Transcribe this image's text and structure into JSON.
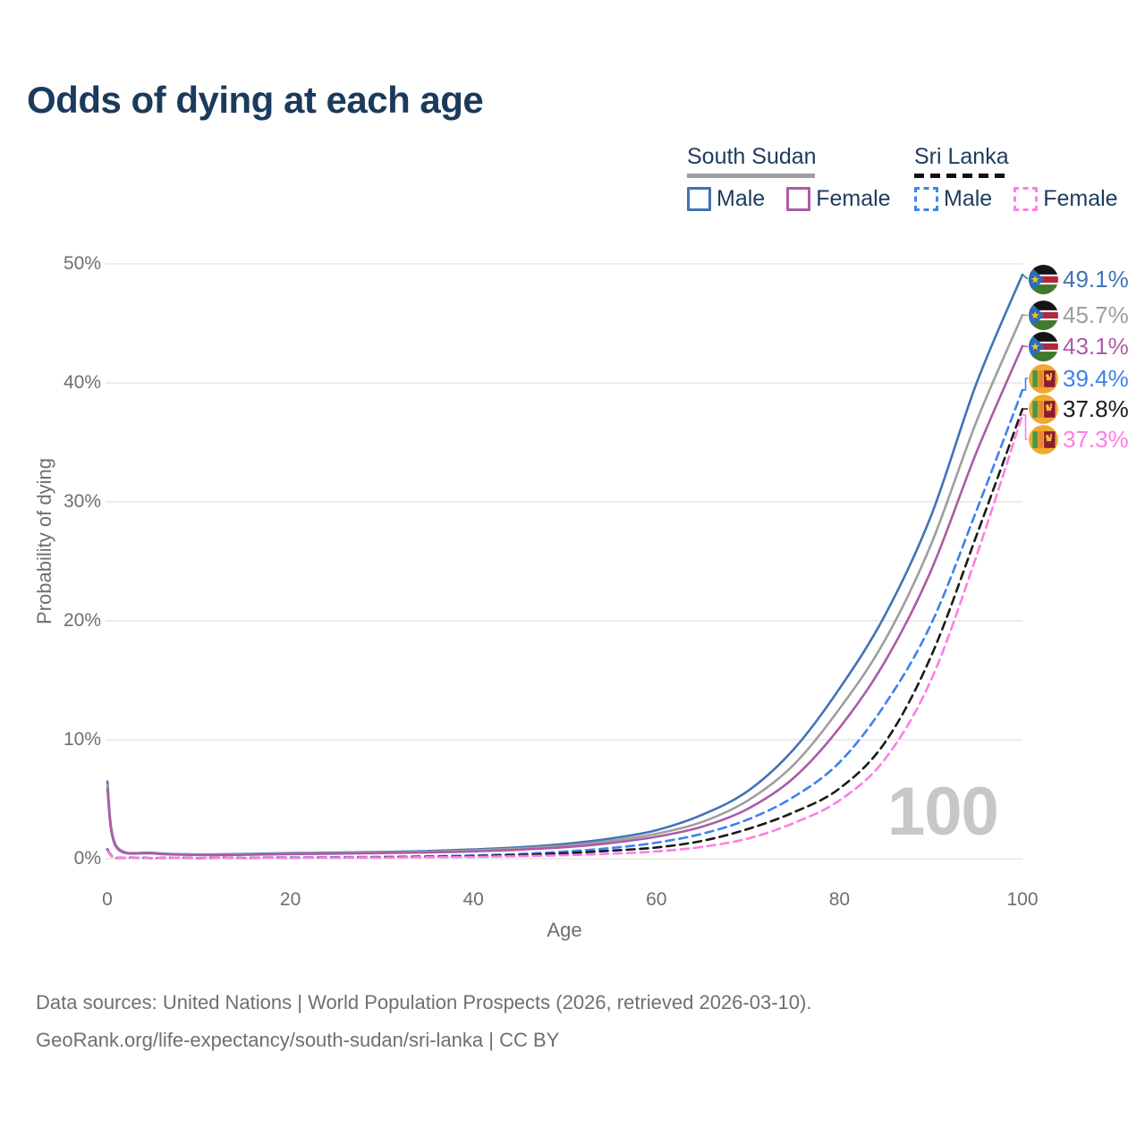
{
  "title": "Odds of dying at each age",
  "legend": {
    "groups": [
      {
        "name": "South Sudan",
        "line_style": "solid",
        "underline_color": "#9e9e9e",
        "underline_width": 143,
        "items": [
          {
            "label": "Male",
            "color": "#4173b4",
            "dashed": false
          },
          {
            "label": "Female",
            "color": "#ac5ba6",
            "dashed": false
          }
        ]
      },
      {
        "name": "Sri Lanka",
        "line_style": "dashed",
        "underline_color": "#111111",
        "underline_width": 104,
        "items": [
          {
            "label": "Male",
            "color": "#3b82f0",
            "dashed": true
          },
          {
            "label": "Female",
            "color": "#ff7de6",
            "dashed": true
          }
        ]
      }
    ]
  },
  "chart_data": {
    "type": "line",
    "title": "Odds of dying at each age",
    "xlabel": "Age",
    "ylabel": "Probability of dying",
    "xlim": [
      0,
      100
    ],
    "ylim": [
      0,
      50
    ],
    "grid": "horizontal",
    "legend_position": "top-right",
    "xticks": [
      {
        "v": 0,
        "label": "0"
      },
      {
        "v": 20,
        "label": "20"
      },
      {
        "v": 40,
        "label": "40"
      },
      {
        "v": 60,
        "label": "60"
      },
      {
        "v": 80,
        "label": "80"
      },
      {
        "v": 100,
        "label": "100"
      }
    ],
    "yticks": [
      {
        "v": 0,
        "label": "0%"
      },
      {
        "v": 10,
        "label": "10%"
      },
      {
        "v": 20,
        "label": "20%"
      },
      {
        "v": 30,
        "label": "30%"
      },
      {
        "v": 40,
        "label": "40%"
      },
      {
        "v": 50,
        "label": "50%"
      }
    ],
    "x": [
      0,
      1,
      5,
      10,
      15,
      20,
      25,
      30,
      35,
      40,
      45,
      50,
      55,
      60,
      65,
      70,
      75,
      80,
      85,
      90,
      95,
      100
    ],
    "series": [
      {
        "name": "South Sudan Male",
        "country": "South Sudan",
        "sex": "Male",
        "color": "#4173b4",
        "dashed": false,
        "flag": "south-sudan",
        "end_label": "49.1%",
        "values": [
          6.5,
          1.05,
          0.5,
          0.36,
          0.4,
          0.47,
          0.52,
          0.57,
          0.65,
          0.78,
          0.96,
          1.25,
          1.7,
          2.4,
          3.7,
          5.7,
          9.2,
          14.3,
          20.5,
          28.8,
          40.0,
          49.1
        ]
      },
      {
        "name": "South Sudan Both sexes",
        "country": "South Sudan",
        "sex": "Both sexes",
        "color": "#9e9e9e",
        "dashed": false,
        "flag": "south-sudan",
        "end_label": "45.7%",
        "values": [
          6.2,
          1.0,
          0.47,
          0.33,
          0.36,
          0.43,
          0.47,
          0.52,
          0.59,
          0.7,
          0.86,
          1.1,
          1.5,
          2.1,
          3.1,
          4.9,
          7.9,
          12.6,
          18.4,
          26.4,
          36.8,
          45.7
        ]
      },
      {
        "name": "South Sudan Female",
        "country": "South Sudan",
        "sex": "Female",
        "color": "#ac5ba6",
        "dashed": false,
        "flag": "south-sudan",
        "end_label": "43.1%",
        "values": [
          5.9,
          0.95,
          0.44,
          0.31,
          0.33,
          0.39,
          0.43,
          0.47,
          0.53,
          0.62,
          0.76,
          0.97,
          1.32,
          1.85,
          2.7,
          4.2,
          6.8,
          11.0,
          16.6,
          24.2,
          34.2,
          43.1
        ]
      },
      {
        "name": "Sri Lanka Male",
        "country": "Sri Lanka",
        "sex": "Male",
        "color": "#3b82f0",
        "dashed": true,
        "flag": "sri-lanka",
        "end_label": "39.4%",
        "values": [
          0.8,
          0.07,
          0.04,
          0.04,
          0.06,
          0.1,
          0.13,
          0.16,
          0.2,
          0.28,
          0.4,
          0.6,
          0.9,
          1.35,
          2.1,
          3.3,
          5.2,
          8.1,
          13.0,
          19.7,
          29.3,
          39.4
        ]
      },
      {
        "name": "Sri Lanka Both sexes",
        "country": "Sri Lanka",
        "sex": "Both sexes",
        "color": "#1a1a1a",
        "dashed": true,
        "flag": "sri-lanka",
        "end_label": "37.8%",
        "values": [
          0.75,
          0.06,
          0.035,
          0.035,
          0.05,
          0.08,
          0.1,
          0.13,
          0.16,
          0.22,
          0.31,
          0.46,
          0.68,
          0.95,
          1.5,
          2.5,
          3.9,
          5.9,
          9.8,
          17.0,
          27.2,
          37.8
        ]
      },
      {
        "name": "Sri Lanka Female",
        "country": "Sri Lanka",
        "sex": "Female",
        "color": "#ff7de6",
        "dashed": true,
        "flag": "sri-lanka",
        "end_label": "37.3%",
        "values": [
          0.7,
          0.05,
          0.03,
          0.03,
          0.04,
          0.06,
          0.08,
          0.1,
          0.13,
          0.16,
          0.22,
          0.3,
          0.42,
          0.62,
          1.0,
          1.7,
          3.0,
          4.9,
          8.4,
          15.0,
          25.5,
          37.3
        ]
      }
    ]
  },
  "watermark": "100",
  "footer": {
    "line1": "Data sources: United Nations | World Population Prospects (2026, retrieved 2026-03-10).",
    "line2": "GeoRank.org/life-expectancy/south-sudan/sri-lanka | CC BY"
  }
}
